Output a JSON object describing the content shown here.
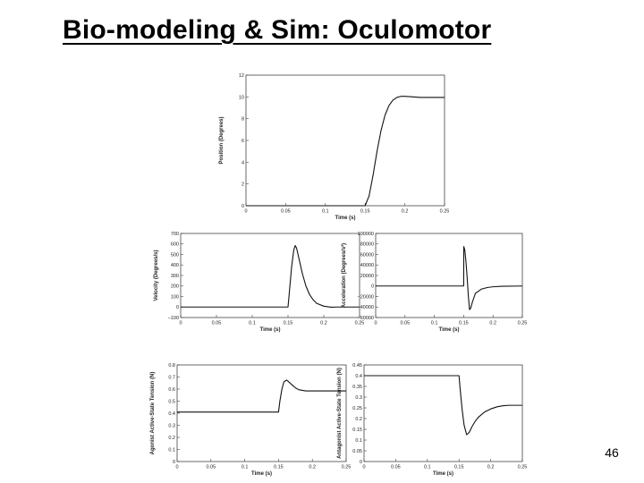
{
  "slide": {
    "title": "Bio-modeling & Sim: Oculomotor",
    "page_number": "46"
  },
  "chart_data": [
    {
      "id": "position",
      "type": "line",
      "xlabel": "Time (s)",
      "ylabel": "Position (Degrees)",
      "xlim": [
        0,
        0.25
      ],
      "ylim": [
        0,
        12
      ],
      "xticks": [
        0,
        0.05,
        0.1,
        0.15,
        0.2,
        0.25
      ],
      "xtick_labels": [
        "0",
        "0.05",
        "0.1",
        "0.15",
        "0.2",
        "0.25"
      ],
      "yticks": [
        0,
        2,
        4,
        6,
        8,
        10,
        12
      ],
      "ytick_labels": [
        "0",
        "2",
        "4",
        "6",
        "8",
        "10",
        "12"
      ],
      "series": [
        {
          "x": [
            0,
            0.15,
            0.155,
            0.16,
            0.165,
            0.17,
            0.175,
            0.18,
            0.185,
            0.19,
            0.195,
            0.2,
            0.21,
            0.22,
            0.235,
            0.25
          ],
          "y": [
            0,
            0,
            0.9,
            2.8,
            5.0,
            6.9,
            8.3,
            9.2,
            9.7,
            9.95,
            10.05,
            10.05,
            10.0,
            9.95,
            9.95,
            9.95
          ]
        }
      ]
    },
    {
      "id": "velocity",
      "type": "line",
      "xlabel": "Time (s)",
      "ylabel": "Velocity (Degrees/s)",
      "xlim": [
        0,
        0.25
      ],
      "ylim": [
        -100,
        700
      ],
      "xticks": [
        0,
        0.05,
        0.1,
        0.15,
        0.2,
        0.25
      ],
      "xtick_labels": [
        "0",
        "0.05",
        "0.1",
        "0.15",
        "0.2",
        "0.25"
      ],
      "yticks": [
        -100,
        0,
        100,
        200,
        300,
        400,
        500,
        600,
        700
      ],
      "ytick_labels": [
        "−100",
        "0",
        "100",
        "200",
        "300",
        "400",
        "500",
        "600",
        "700"
      ],
      "series": [
        {
          "x": [
            0,
            0.15,
            0.152,
            0.155,
            0.158,
            0.16,
            0.162,
            0.165,
            0.17,
            0.175,
            0.18,
            0.185,
            0.19,
            0.2,
            0.21,
            0.22,
            0.25
          ],
          "y": [
            0,
            0,
            150,
            380,
            540,
            585,
            560,
            470,
            320,
            200,
            120,
            70,
            35,
            8,
            -2,
            0,
            0
          ]
        }
      ]
    },
    {
      "id": "acceleration",
      "type": "line",
      "xlabel": "Time (s)",
      "ylabel": "Acceleration (Degrees/s²)",
      "xlim": [
        0,
        0.25
      ],
      "ylim": [
        -60000,
        100000
      ],
      "xticks": [
        0,
        0.05,
        0.1,
        0.15,
        0.2,
        0.25
      ],
      "xtick_labels": [
        "0",
        "0.05",
        "0.1",
        "0.15",
        "0.2",
        "0.25"
      ],
      "yticks": [
        -60000,
        -40000,
        -20000,
        0,
        20000,
        40000,
        60000,
        80000,
        100000
      ],
      "ytick_labels": [
        "−60000",
        "−40000",
        "−20000",
        "0",
        "20000",
        "40000",
        "60000",
        "80000",
        "100000"
      ],
      "series": [
        {
          "x": [
            0,
            0.15,
            0.1502,
            0.152,
            0.154,
            0.156,
            0.158,
            0.16,
            0.162,
            0.165,
            0.17,
            0.18,
            0.19,
            0.2,
            0.215,
            0.25
          ],
          "y": [
            0,
            0,
            75000,
            68000,
            45000,
            15000,
            -20000,
            -45000,
            -42000,
            -30000,
            -14000,
            -6000,
            -3000,
            -1500,
            -600,
            0
          ]
        }
      ]
    },
    {
      "id": "agonist",
      "type": "line",
      "xlabel": "Time (s)",
      "ylabel": "Agonist Active-State Tension (N)",
      "xlim": [
        0,
        0.25
      ],
      "ylim": [
        0,
        0.8
      ],
      "xticks": [
        0,
        0.05,
        0.1,
        0.15,
        0.2,
        0.25
      ],
      "xtick_labels": [
        "0",
        "0.05",
        "0.1",
        "0.15",
        "0.2",
        "0.25"
      ],
      "yticks": [
        0,
        0.1,
        0.2,
        0.3,
        0.4,
        0.5,
        0.6,
        0.7,
        0.8
      ],
      "ytick_labels": [
        "0",
        "0.1",
        "0.2",
        "0.3",
        "0.4",
        "0.5",
        "0.6",
        "0.7",
        "0.8"
      ],
      "series": [
        {
          "x": [
            0,
            0.15,
            0.152,
            0.155,
            0.158,
            0.162,
            0.166,
            0.17,
            0.175,
            0.18,
            0.19,
            0.2,
            0.25
          ],
          "y": [
            0.41,
            0.41,
            0.5,
            0.6,
            0.66,
            0.675,
            0.655,
            0.635,
            0.61,
            0.595,
            0.585,
            0.585,
            0.585
          ]
        }
      ]
    },
    {
      "id": "antagonist",
      "type": "line",
      "xlabel": "Time (s)",
      "ylabel": "Antagonist Active-State Tension (N)",
      "xlim": [
        0,
        0.25
      ],
      "ylim": [
        0,
        0.45
      ],
      "xticks": [
        0,
        0.05,
        0.1,
        0.15,
        0.2,
        0.25
      ],
      "xtick_labels": [
        "0",
        "0.05",
        "0.1",
        "0.15",
        "0.2",
        "0.25"
      ],
      "yticks": [
        0,
        0.05,
        0.1,
        0.15,
        0.2,
        0.25,
        0.3,
        0.35,
        0.4,
        0.45
      ],
      "ytick_labels": [
        "0",
        "0.05",
        "0.1",
        "0.15",
        "0.2",
        "0.25",
        "0.3",
        "0.35",
        "0.4",
        "0.45"
      ],
      "series": [
        {
          "x": [
            0,
            0.15,
            0.152,
            0.155,
            0.158,
            0.162,
            0.166,
            0.17,
            0.175,
            0.18,
            0.19,
            0.2,
            0.21,
            0.22,
            0.23,
            0.25
          ],
          "y": [
            0.4,
            0.4,
            0.33,
            0.24,
            0.17,
            0.125,
            0.135,
            0.16,
            0.185,
            0.205,
            0.23,
            0.245,
            0.255,
            0.26,
            0.262,
            0.262
          ]
        }
      ]
    }
  ]
}
